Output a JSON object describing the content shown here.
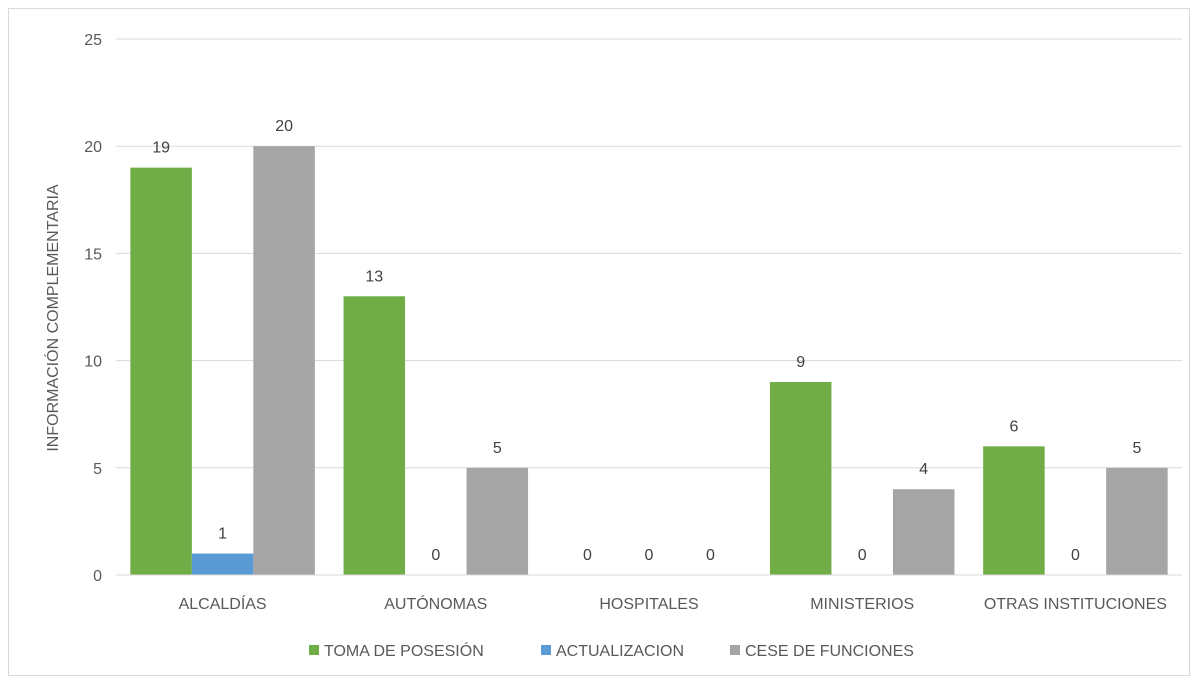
{
  "chart_data": {
    "type": "bar",
    "title": "",
    "xlabel": "",
    "ylabel": "INFORMACIÓN COMPLEMENTARIA",
    "ylim": [
      0,
      25
    ],
    "yticks": [
      0,
      5,
      10,
      15,
      20,
      25
    ],
    "grid": true,
    "legend_position": "bottom",
    "categories": [
      "ALCALDÍAS",
      "AUTÓNOMAS",
      "HOSPITALES",
      "MINISTERIOS",
      "OTRAS INSTITUCIONES"
    ],
    "series": [
      {
        "name": "TOMA DE POSESIÓN",
        "color": "#70ad47",
        "values": [
          19,
          13,
          0,
          9,
          6
        ]
      },
      {
        "name": "ACTUALIZACION",
        "color": "#5b9bd5",
        "values": [
          1,
          0,
          0,
          0,
          0
        ]
      },
      {
        "name": "CESE DE FUNCIONES",
        "color": "#a5a5a5",
        "values": [
          20,
          5,
          0,
          4,
          5
        ]
      }
    ]
  }
}
